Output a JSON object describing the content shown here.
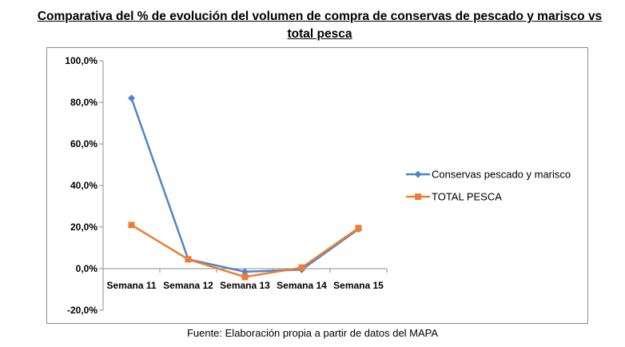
{
  "title": "Comparativa del % de evolución del volumen de compra de conservas de pescado y marisco vs total pesca",
  "source": "Fuente: Elaboración propia a partir de datos del MAPA",
  "chart_data": {
    "type": "line",
    "categories": [
      "Semana 11",
      "Semana 12",
      "Semana 13",
      "Semana 14",
      "Semana 15"
    ],
    "ylim": [
      -20,
      100
    ],
    "yticks": [
      -20,
      0,
      20,
      40,
      60,
      80,
      100
    ],
    "ytick_labels": [
      "-20,0%",
      "0,0%",
      "20,0%",
      "40,0%",
      "60,0%",
      "80,0%",
      "100,0%"
    ],
    "legend_position": "right",
    "grid": false,
    "series": [
      {
        "name": "Conservas pescado y marisco",
        "color": "#4F86C6",
        "marker": "diamond",
        "values": [
          82.0,
          4.5,
          -1.5,
          -0.5,
          19.0
        ]
      },
      {
        "name": "TOTAL PESCA",
        "color": "#ED7D31",
        "marker": "square",
        "values": [
          21.0,
          4.5,
          -4.0,
          0.5,
          19.5
        ]
      }
    ]
  }
}
